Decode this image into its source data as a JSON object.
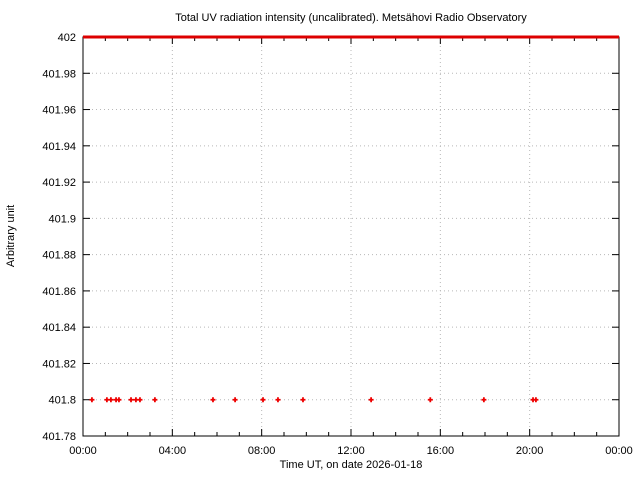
{
  "window": {
    "background_color": "#ffffff",
    "axis_color": "#000000",
    "grid_color": "#b8b8b8"
  },
  "chart_data": {
    "type": "scatter",
    "title": "Total UV radiation intensity (uncalibrated). Metsähovi Radio Observatory",
    "xlabel": "Time UT, on date 2026-01-18",
    "ylabel": "Arbitrary unit",
    "grid": true,
    "legend": "none",
    "xlim_hours": [
      0,
      24
    ],
    "ylim": [
      401.78,
      402
    ],
    "x_tick_hours": [
      0,
      4,
      8,
      12,
      16,
      20,
      24
    ],
    "x_tick_labels": [
      "00:00",
      "04:00",
      "08:00",
      "12:00",
      "16:00",
      "20:00",
      "00:00"
    ],
    "x_minor_step_hours": 1,
    "y_tick_values": [
      401.78,
      401.8,
      401.82,
      401.84,
      401.86,
      401.88,
      401.9,
      401.92,
      401.94,
      401.96,
      401.98,
      402
    ],
    "y_tick_labels": [
      "401.78",
      "401.8",
      "401.82",
      "401.84",
      "401.86",
      "401.88",
      "401.9",
      "401.92",
      "401.94",
      "401.96",
      "401.98",
      "402"
    ],
    "series": [
      {
        "name": "saturated intensity line at 402",
        "type": "line",
        "color": "#dd0000",
        "linewidth": 3,
        "x_hours": [
          0,
          24
        ],
        "y_values": [
          402,
          402
        ]
      },
      {
        "name": "uv intensity sample points",
        "type": "points",
        "marker": "plus",
        "color": "#ee0000",
        "value_y": 401.8,
        "x_hours": [
          0.4,
          1.07,
          1.25,
          1.48,
          1.61,
          2.15,
          2.37,
          2.55,
          3.22,
          5.82,
          6.81,
          8.06,
          8.73,
          9.85,
          12.9,
          15.55,
          17.95,
          20.15,
          20.28
        ]
      }
    ]
  }
}
